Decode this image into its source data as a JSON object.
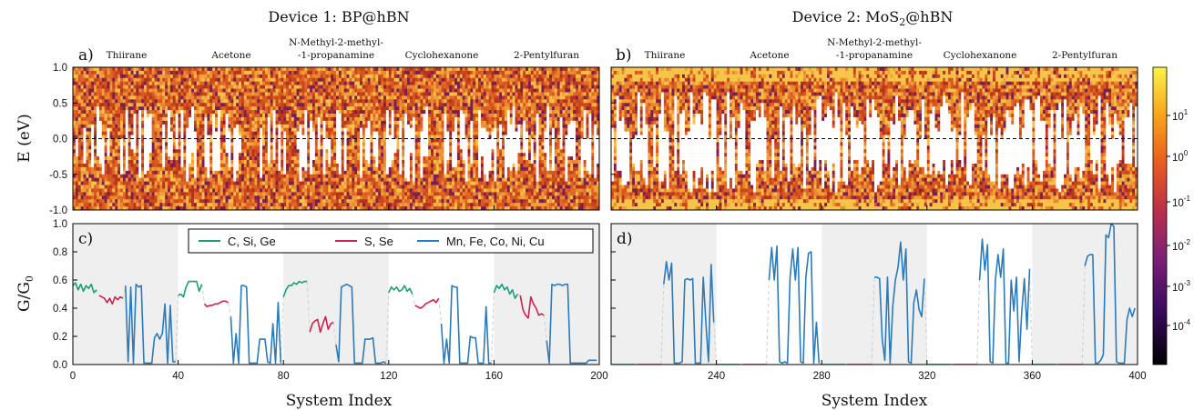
{
  "titles": {
    "device1": "Device 1:  BP@hBN",
    "device2": "Device 2:  MoS",
    "device2_sub": "2",
    "device2_suffix": "@hBN"
  },
  "panel_labels": [
    "a)",
    "b)",
    "c)",
    "d)"
  ],
  "molecules": [
    "Thiirane",
    "Acetone",
    "N-Methyl-2-methyl-",
    "-1-propanamine",
    "Cyclohexanone",
    "2-Pentylfuran"
  ],
  "axes": {
    "top_ylabel": "E (eV)",
    "bottom_ylabel": "G/G",
    "bottom_ylabel_sub": "0",
    "xlabel": "System Index",
    "top_yticks": [
      "1.0",
      "0.5",
      "0.0",
      "-0.5",
      "-1.0"
    ],
    "bottom_yticks": [
      "1.0",
      "0.8",
      "0.6",
      "0.4",
      "0.2",
      "0.0"
    ],
    "left_xticks": [
      "0",
      "40",
      "80",
      "120",
      "160",
      "200"
    ],
    "right_xticks": [
      "240",
      "280",
      "320",
      "360",
      "400"
    ],
    "colorbar_ticks": [
      "10",
      "10",
      "10",
      "10",
      "10",
      "10",
      "10"
    ],
    "colorbar_exponents": [
      "1",
      "0",
      "-1",
      "-2",
      "-3",
      "-4",
      ""
    ]
  },
  "legend": [
    {
      "label": "C, Si, Ge",
      "color": "#1b9e77"
    },
    {
      "label": "S, Se",
      "color": "#c7254e"
    },
    {
      "label": "Mn, Fe, Co, Ni, Cu",
      "color": "#2b7bba"
    }
  ],
  "colors": {
    "shade": "#efefef",
    "heat_low": "#8a1c1c",
    "heat_mid": "#e8782a",
    "heat_high": "#f4c64a",
    "dashed": "#cfcfcf"
  },
  "chart_data": [
    {
      "type": "heatmap",
      "panel": "a",
      "title": "Device 1:  BP@hBN",
      "xlim": [
        0,
        200
      ],
      "ylim": [
        -1.0,
        1.0
      ],
      "ylabel": "E (eV)"
    },
    {
      "type": "heatmap",
      "panel": "b",
      "title": "Device 2:  MoS2@hBN",
      "xlim": [
        200,
        400
      ],
      "ylim": [
        -1.0,
        1.0
      ]
    },
    {
      "type": "line",
      "panel": "c",
      "xlabel": "System Index",
      "ylabel": "G/G0",
      "xlim": [
        0,
        200
      ],
      "ylim": [
        0.0,
        1.0
      ],
      "series": [
        {
          "name": "C, Si, Ge",
          "segments": [
            {
              "x": [
                0,
                1,
                2,
                3,
                4,
                5,
                6,
                7,
                8,
                9
              ],
              "y": [
                0.56,
                0.58,
                0.53,
                0.57,
                0.52,
                0.56,
                0.54,
                0.57,
                0.51,
                0.53
              ]
            },
            {
              "x": [
                40,
                41,
                42,
                43,
                44,
                45,
                46,
                47,
                48,
                49
              ],
              "y": [
                0.49,
                0.5,
                0.48,
                0.55,
                0.59,
                0.59,
                0.59,
                0.59,
                0.52,
                0.57
              ]
            },
            {
              "x": [
                80,
                81,
                82,
                83,
                84,
                85,
                86,
                87,
                88,
                89
              ],
              "y": [
                0.48,
                0.53,
                0.56,
                0.56,
                0.58,
                0.57,
                0.59,
                0.58,
                0.59,
                0.59
              ]
            },
            {
              "x": [
                120,
                121,
                122,
                123,
                124,
                125,
                126,
                127,
                128,
                129
              ],
              "y": [
                0.51,
                0.55,
                0.53,
                0.55,
                0.52,
                0.53,
                0.56,
                0.52,
                0.54,
                0.5
              ]
            },
            {
              "x": [
                160,
                161,
                162,
                163,
                164,
                165,
                166,
                167,
                168,
                169
              ],
              "y": [
                0.51,
                0.56,
                0.54,
                0.57,
                0.53,
                0.55,
                0.5,
                0.53,
                0.47,
                0.5
              ]
            }
          ]
        },
        {
          "name": "S, Se",
          "segments": [
            {
              "x": [
                10,
                11,
                12,
                13,
                14,
                15,
                16,
                17,
                18,
                19
              ],
              "y": [
                0.49,
                0.48,
                0.47,
                0.44,
                0.47,
                0.43,
                0.48,
                0.46,
                0.48,
                0.47
              ]
            },
            {
              "x": [
                50,
                51,
                52,
                53,
                54,
                55,
                56,
                57,
                58,
                59
              ],
              "y": [
                0.43,
                0.41,
                0.42,
                0.42,
                0.43,
                0.43,
                0.44,
                0.45,
                0.45,
                0.44
              ]
            },
            {
              "x": [
                90,
                91,
                92,
                93,
                94,
                95,
                96,
                97,
                98,
                99
              ],
              "y": [
                0.23,
                0.29,
                0.31,
                0.32,
                0.23,
                0.29,
                0.34,
                0.25,
                0.29,
                0.3
              ]
            },
            {
              "x": [
                130,
                131,
                132,
                133,
                134,
                135,
                136,
                137,
                138,
                139
              ],
              "y": [
                0.42,
                0.41,
                0.4,
                0.41,
                0.43,
                0.44,
                0.45,
                0.46,
                0.44,
                0.47
              ]
            },
            {
              "x": [
                170,
                171,
                172,
                173,
                174,
                175,
                176,
                177,
                178,
                179
              ],
              "y": [
                0.49,
                0.39,
                0.35,
                0.33,
                0.48,
                0.43,
                0.4,
                0.35,
                0.36,
                0.35
              ]
            }
          ]
        },
        {
          "name": "Mn, Fe, Co, Ni, Cu",
          "segments": [
            {
              "x": [
                20,
                21,
                22,
                23,
                24,
                25,
                26,
                27,
                28,
                29,
                30,
                31,
                32,
                33,
                34,
                35,
                36,
                37,
                38,
                39
              ],
              "y": [
                0.56,
                0.02,
                0.55,
                0.01,
                0.57,
                0.55,
                0.56,
                0.01,
                0.01,
                0.01,
                0.01,
                0.19,
                0.22,
                0.18,
                0.22,
                0.43,
                0.01,
                0.42,
                0.02,
                0.02
              ]
            },
            {
              "x": [
                60,
                61,
                62,
                63,
                64,
                65,
                66,
                67,
                68,
                69,
                70,
                71,
                72,
                73,
                74,
                75,
                76,
                77,
                78,
                79
              ],
              "y": [
                0.34,
                0.01,
                0.22,
                0.01,
                0.56,
                0.56,
                0.55,
                0.01,
                0.01,
                0.01,
                0.01,
                0.18,
                0.18,
                0.18,
                0.02,
                0.01,
                0.29,
                0.01,
                0.44,
                0.01
              ]
            },
            {
              "x": [
                100,
                101,
                102,
                103,
                104,
                105,
                106,
                107,
                108,
                109,
                110,
                111,
                112,
                113,
                114,
                115,
                116,
                117,
                118,
                119
              ],
              "y": [
                0.14,
                0.02,
                0.55,
                0.56,
                0.57,
                0.56,
                0.55,
                0.01,
                0.01,
                0.01,
                0.01,
                0.18,
                0.18,
                0.18,
                0.19,
                0.01,
                0.01,
                0.01,
                0.02,
                0.01
              ]
            },
            {
              "x": [
                140,
                141,
                142,
                143,
                144,
                145,
                146,
                147,
                148,
                149,
                150,
                151,
                152,
                153,
                154,
                155,
                156,
                157,
                158,
                159
              ],
              "y": [
                0.29,
                0.01,
                0.18,
                0.01,
                0.56,
                0.55,
                0.55,
                0.01,
                0.01,
                0.01,
                0.01,
                0.2,
                0.19,
                0.19,
                0.01,
                0.01,
                0.01,
                0.41,
                0.01,
                0.01
              ]
            },
            {
              "x": [
                180,
                181,
                182,
                183,
                184,
                185,
                186,
                187,
                188,
                189,
                190,
                191,
                192,
                193,
                194,
                195,
                196,
                197,
                198,
                199
              ],
              "y": [
                0.17,
                0.01,
                0.57,
                0.56,
                0.57,
                0.57,
                0.56,
                0.57,
                0.57,
                0.01,
                0.01,
                0.01,
                0.01,
                0.01,
                0.01,
                0.01,
                0.03,
                0.03,
                0.03,
                0.03
              ]
            }
          ]
        }
      ]
    },
    {
      "type": "line",
      "panel": "d",
      "xlabel": "System Index",
      "xlim": [
        200,
        400
      ],
      "ylim": [
        0.0,
        1.0
      ],
      "series": [
        {
          "name": "C, Si, Ge",
          "segments": [
            {
              "x": [
                200,
                209
              ],
              "y": [
                0.0,
                0.0
              ]
            },
            {
              "x": [
                240,
                249
              ],
              "y": [
                0.0,
                0.0
              ]
            },
            {
              "x": [
                280,
                289
              ],
              "y": [
                0.0,
                0.0
              ]
            },
            {
              "x": [
                320,
                329
              ],
              "y": [
                0.0,
                0.0
              ]
            },
            {
              "x": [
                360,
                369
              ],
              "y": [
                0.0,
                0.0
              ]
            }
          ]
        },
        {
          "name": "S, Se",
          "segments": [
            {
              "x": [
                210,
                219
              ],
              "y": [
                0.0,
                0.0
              ]
            },
            {
              "x": [
                250,
                259
              ],
              "y": [
                0.0,
                0.0
              ]
            },
            {
              "x": [
                290,
                299
              ],
              "y": [
                0.0,
                0.0
              ]
            },
            {
              "x": [
                330,
                339
              ],
              "y": [
                0.0,
                0.0
              ]
            },
            {
              "x": [
                370,
                379
              ],
              "y": [
                0.0,
                0.0
              ]
            }
          ]
        },
        {
          "name": "Mn, Fe, Co, Ni, Cu",
          "segments": [
            {
              "x": [
                220,
                221,
                222,
                223,
                224,
                225,
                226,
                227,
                228,
                229,
                230,
                231,
                232,
                233,
                234,
                235,
                236,
                237,
                238,
                239
              ],
              "y": [
                0.57,
                0.73,
                0.6,
                0.72,
                0.01,
                0.01,
                0.01,
                0.02,
                0.6,
                0.61,
                0.6,
                0.61,
                0.01,
                0.01,
                0.01,
                0.62,
                0.3,
                0.02,
                0.71,
                0.3
              ]
            },
            {
              "x": [
                260,
                261,
                262,
                263,
                264,
                265,
                266,
                267,
                268,
                269,
                270,
                271,
                272,
                273,
                274,
                275,
                276,
                277,
                278,
                279
              ],
              "y": [
                0.6,
                0.83,
                0.6,
                0.84,
                0.02,
                0.01,
                0.02,
                0.01,
                0.62,
                0.82,
                0.6,
                0.83,
                0.02,
                0.01,
                0.62,
                0.79,
                0.8,
                0.01,
                0.3,
                0.01
              ]
            },
            {
              "x": [
                300,
                301,
                302,
                303,
                304,
                305,
                306,
                307,
                308,
                309,
                310,
                311,
                312,
                313,
                314,
                315,
                316,
                317,
                318,
                319
              ],
              "y": [
                0.62,
                0.62,
                0.61,
                0.18,
                0.03,
                0.62,
                0.01,
                0.41,
                0.6,
                0.69,
                0.87,
                0.6,
                0.82,
                0.02,
                0.01,
                0.44,
                0.53,
                0.39,
                0.34,
                0.61
              ]
            },
            {
              "x": [
                340,
                341,
                342,
                343,
                344,
                345,
                346,
                347,
                348,
                349,
                350,
                351,
                352,
                353,
                354,
                355,
                356,
                357,
                358,
                359
              ],
              "y": [
                0.6,
                0.89,
                0.67,
                0.85,
                0.02,
                0.01,
                0.6,
                0.78,
                0.62,
                0.82,
                0.01,
                0.01,
                0.6,
                0.38,
                0.62,
                0.02,
                0.37,
                0.61,
                0.25,
                0.68
              ]
            },
            {
              "x": [
                380,
                381,
                382,
                383,
                384,
                385,
                386,
                387,
                388,
                389,
                390,
                391,
                392,
                393,
                394,
                395,
                396,
                397,
                398,
                399
              ],
              "y": [
                0.7,
                0.77,
                0.78,
                0.78,
                0.01,
                0.01,
                0.03,
                0.07,
                0.92,
                0.9,
                1.0,
                0.98,
                0.02,
                0.01,
                0.01,
                0.01,
                0.32,
                0.4,
                0.34,
                0.4
              ]
            }
          ]
        }
      ]
    }
  ]
}
